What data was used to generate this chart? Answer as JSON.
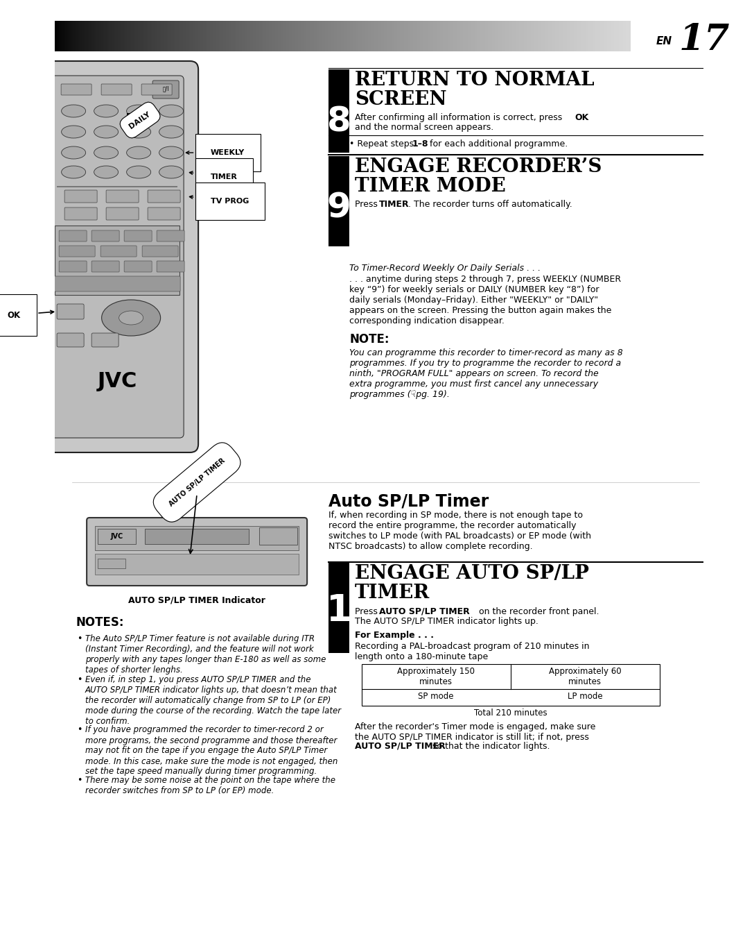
{
  "page_num": "17",
  "bg_color": "#ffffff",
  "section8_num": "8",
  "section8_title1": "RETURN TO NORMAL",
  "section8_title2": "SCREEN",
  "section8_body1": "After confirming all information is correct, press ",
  "section8_body1b": "OK",
  "section8_body1c": "\nand the normal screen appears.",
  "section8_bullet": "• Repeat steps ",
  "section8_bullet_bold": "1–8",
  "section8_bullet_end": " for each additional programme.",
  "section9_num": "9",
  "section9_title1": "ENGAGE RECORDER’S",
  "section9_title2": "TIMER MODE",
  "section9_body_pre": "Press ",
  "section9_body_bold": "TIMER",
  "section9_body_post": ". The recorder turns off automatically.",
  "weekly_italic": "To Timer-Record Weekly Or Daily Serials . . .",
  "weekly_body": ". . . anytime during steps 2 through 7, press WEEKLY (NUMBER\nkey “9”) for weekly serials or DAILY (NUMBER key “8”) for\ndaily serials (Monday–Friday). Either \"WEEKLY\" or \"DAILY\"\nappears on the screen. Pressing the button again makes the\ncorresponding indication disappear.",
  "note_title": "NOTE:",
  "note_body": "You can programme this recorder to timer-record as many as 8\nprogrammes. If you try to programme the recorder to record a\nninth, \"PROGRAM FULL\" appears on screen. To record the\nextra programme, you must first cancel any unnecessary\nprogrammes (☟pg. 19).",
  "auto_title": "Auto SP/LP Timer",
  "auto_body": "If, when recording in SP mode, there is not enough tape to\nrecord the entire programme, the recorder automatically\nswitches to LP mode (with PAL broadcasts) or EP mode (with\nNTSC broadcasts) to allow complete recording.",
  "engage1_num": "1",
  "engage1_title1": "ENGAGE AUTO SP/LP",
  "engage1_title2": "TIMER",
  "engage1_body1_pre": "Press ",
  "engage1_body1_bold": "AUTO SP/LP TIMER",
  "engage1_body1_post": " on the recorder front panel.",
  "engage1_body2": "The AUTO SP/LP TIMER indicator lights up.",
  "engage1_ex_title": "For Example . . .",
  "engage1_ex_body": "Recording a PAL-broadcast program of 210 minutes in\nlength onto a 180-minute tape",
  "table_h1": "Approximately 150\nminutes",
  "table_h2": "Approximately 60\nminutes",
  "table_r1": "SP mode",
  "table_r2": "LP mode",
  "table_total": "Total 210 minutes",
  "engage1_body3_pre": "After the recorder's Timer mode is engaged, make sure\nthe AUTO SP/LP TIMER indicator is still lit; if not, press\n",
  "engage1_body3_bold": "AUTO SP/LP TIMER",
  "engage1_body3_post": " so that the indicator lights.",
  "indicator_label": "AUTO SP/LP TIMER Indicator",
  "notes_title": "NOTES:",
  "notes": [
    "The Auto SP/LP Timer feature is not available during ITR\n(Instant Timer Recording), and the feature will not work\nproperly with any tapes longer than E-180 as well as some\ntapes of shorter lenghs.",
    "Even if, in step 1, you press AUTO SP/LP TIMER and the\nAUTO SP/LP TIMER indicator lights up, that doesn’t mean that\nthe recorder will automatically change from SP to LP (or EP)\nmode during the course of the recording. Watch the tape later\nto confirm.",
    "If you have programmed the recorder to timer-record 2 or\nmore programs, the second programme and those thereafter\nmay not fit on the tape if you engage the Auto SP/LP Timer\nmode. In this case, make sure the mode is not engaged, then\nset the tape speed manually during timer programming.",
    "There may be some noise at the point on the tape where the\nrecorder switches from SP to LP (or EP) mode."
  ]
}
